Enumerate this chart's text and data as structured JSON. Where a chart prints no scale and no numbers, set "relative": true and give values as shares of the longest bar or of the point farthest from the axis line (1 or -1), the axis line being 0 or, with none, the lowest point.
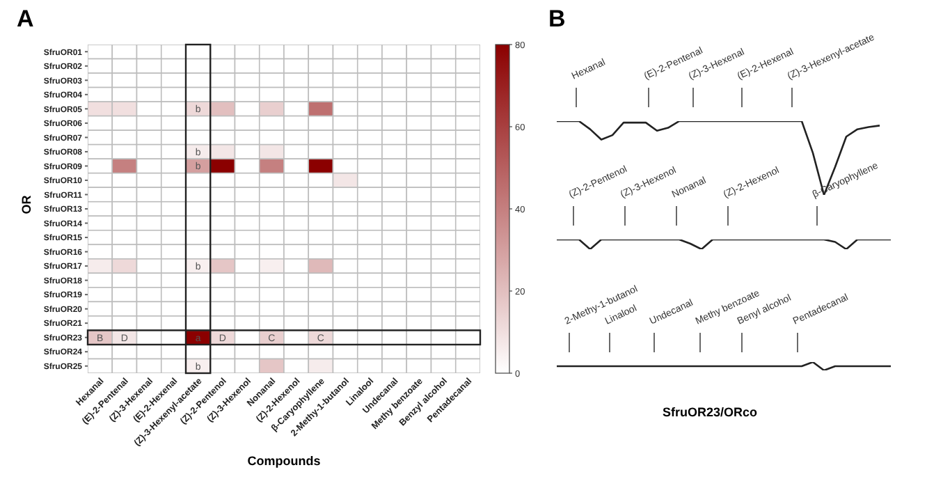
{
  "chart_data": [
    {
      "type": "heatmap",
      "title": "A",
      "xlabel": "Compounds",
      "ylabel": "OR",
      "clim": [
        0,
        80
      ],
      "cticks": [
        0,
        20,
        40,
        60,
        80
      ],
      "categories": [
        "Hexanal",
        "(E)-2-Pentenal",
        "(Z)-3-Hexenal",
        "(E)-2-Hexenal",
        "(Z)-3-Hexenyl-acetate",
        "(Z)-2-Pentenol",
        "(Z)-3-Hexenol",
        "Nonanal",
        "(Z)-2-Hexenol",
        "β-Caryophyllene",
        "2-Methy-1-butanol",
        "Linalool",
        "Undecanal",
        "Methy benzoate",
        "Benzyl alcohol",
        "Pentadecanal"
      ],
      "y_categories": [
        "SfruOR01",
        "SfruOR02",
        "SfruOR03",
        "SfruOR04",
        "SfruOR05",
        "SfruOR06",
        "SfruOR07",
        "SfruOR08",
        "SfruOR09",
        "SfruOR10",
        "SfruOR11",
        "SfruOR13",
        "SfruOR14",
        "SfruOR15",
        "SfruOR16",
        "SfruOR17",
        "SfruOR18",
        "SfruOR19",
        "SfruOR20",
        "SfruOR21",
        "SfruOR23",
        "SfruOR24",
        "SfruOR25"
      ],
      "cells": [
        [
          0,
          0,
          0,
          0,
          0,
          0,
          0,
          0,
          0,
          0,
          0,
          0,
          0,
          0,
          0,
          0
        ],
        [
          0,
          0,
          0,
          0,
          0,
          0,
          0,
          0,
          0,
          0,
          0,
          0,
          0,
          0,
          0,
          0
        ],
        [
          0,
          0,
          0,
          0,
          0,
          0,
          0,
          0,
          0,
          0,
          0,
          0,
          0,
          0,
          0,
          0
        ],
        [
          0,
          0,
          0,
          0,
          0,
          0,
          0,
          0,
          0,
          0,
          0,
          0,
          0,
          0,
          0,
          0
        ],
        [
          10,
          10,
          0,
          0,
          12,
          20,
          0,
          15,
          0,
          45,
          0,
          0,
          0,
          0,
          0,
          0
        ],
        [
          0,
          0,
          0,
          0,
          0,
          0,
          0,
          0,
          0,
          0,
          0,
          0,
          0,
          0,
          0,
          0
        ],
        [
          0,
          0,
          0,
          0,
          0,
          0,
          0,
          0,
          0,
          0,
          0,
          0,
          0,
          0,
          0,
          0
        ],
        [
          0,
          0,
          0,
          0,
          6,
          8,
          0,
          8,
          0,
          0,
          0,
          0,
          0,
          0,
          0,
          0
        ],
        [
          0,
          40,
          0,
          0,
          30,
          80,
          0,
          40,
          0,
          80,
          0,
          0,
          0,
          0,
          0,
          0
        ],
        [
          0,
          0,
          0,
          0,
          0,
          0,
          0,
          0,
          0,
          0,
          8,
          0,
          0,
          0,
          0,
          0
        ],
        [
          0,
          0,
          0,
          0,
          0,
          0,
          0,
          0,
          0,
          0,
          0,
          0,
          0,
          0,
          0,
          0
        ],
        [
          0,
          0,
          0,
          0,
          0,
          0,
          0,
          0,
          0,
          0,
          0,
          0,
          0,
          0,
          0,
          0
        ],
        [
          0,
          0,
          0,
          0,
          0,
          0,
          0,
          0,
          0,
          0,
          0,
          0,
          0,
          0,
          0,
          0
        ],
        [
          0,
          0,
          0,
          0,
          0,
          0,
          0,
          0,
          0,
          0,
          0,
          0,
          0,
          0,
          0,
          0
        ],
        [
          0,
          0,
          0,
          0,
          0,
          0,
          0,
          0,
          0,
          0,
          0,
          0,
          0,
          0,
          0,
          0
        ],
        [
          6,
          12,
          0,
          0,
          5,
          18,
          0,
          5,
          0,
          22,
          0,
          0,
          0,
          0,
          0,
          0
        ],
        [
          0,
          0,
          0,
          0,
          0,
          0,
          0,
          0,
          0,
          0,
          0,
          0,
          0,
          0,
          0,
          0
        ],
        [
          0,
          0,
          0,
          0,
          0,
          0,
          0,
          0,
          0,
          0,
          0,
          0,
          0,
          0,
          0,
          0
        ],
        [
          0,
          0,
          0,
          0,
          0,
          0,
          0,
          0,
          0,
          0,
          0,
          0,
          0,
          0,
          0,
          0
        ],
        [
          0,
          0,
          0,
          0,
          0,
          0,
          0,
          0,
          0,
          0,
          0,
          0,
          0,
          0,
          0,
          0
        ],
        [
          18,
          8,
          0,
          0,
          80,
          12,
          0,
          15,
          0,
          12,
          0,
          0,
          0,
          0,
          0,
          0
        ],
        [
          0,
          0,
          0,
          0,
          0,
          0,
          0,
          0,
          0,
          0,
          0,
          0,
          0,
          0,
          0,
          0
        ],
        [
          0,
          0,
          0,
          0,
          5,
          0,
          0,
          18,
          0,
          6,
          0,
          0,
          0,
          0,
          0,
          0
        ]
      ],
      "cell_labels": [
        [
          null,
          null,
          null,
          null,
          null,
          null,
          null,
          null,
          null,
          null,
          null,
          null,
          null,
          null,
          null,
          null
        ],
        [
          null,
          null,
          null,
          null,
          null,
          null,
          null,
          null,
          null,
          null,
          null,
          null,
          null,
          null,
          null,
          null
        ],
        [
          null,
          null,
          null,
          null,
          null,
          null,
          null,
          null,
          null,
          null,
          null,
          null,
          null,
          null,
          null,
          null
        ],
        [
          null,
          null,
          null,
          null,
          null,
          null,
          null,
          null,
          null,
          null,
          null,
          null,
          null,
          null,
          null,
          null
        ],
        [
          null,
          null,
          null,
          null,
          "b",
          null,
          null,
          null,
          null,
          null,
          null,
          null,
          null,
          null,
          null,
          null
        ],
        [
          null,
          null,
          null,
          null,
          null,
          null,
          null,
          null,
          null,
          null,
          null,
          null,
          null,
          null,
          null,
          null
        ],
        [
          null,
          null,
          null,
          null,
          null,
          null,
          null,
          null,
          null,
          null,
          null,
          null,
          null,
          null,
          null,
          null
        ],
        [
          null,
          null,
          null,
          null,
          "b",
          null,
          null,
          null,
          null,
          null,
          null,
          null,
          null,
          null,
          null,
          null
        ],
        [
          null,
          null,
          null,
          null,
          "b",
          null,
          null,
          null,
          null,
          null,
          null,
          null,
          null,
          null,
          null,
          null
        ],
        [
          null,
          null,
          null,
          null,
          null,
          null,
          null,
          null,
          null,
          null,
          null,
          null,
          null,
          null,
          null,
          null
        ],
        [
          null,
          null,
          null,
          null,
          null,
          null,
          null,
          null,
          null,
          null,
          null,
          null,
          null,
          null,
          null,
          null
        ],
        [
          null,
          null,
          null,
          null,
          null,
          null,
          null,
          null,
          null,
          null,
          null,
          null,
          null,
          null,
          null,
          null
        ],
        [
          null,
          null,
          null,
          null,
          null,
          null,
          null,
          null,
          null,
          null,
          null,
          null,
          null,
          null,
          null,
          null
        ],
        [
          null,
          null,
          null,
          null,
          null,
          null,
          null,
          null,
          null,
          null,
          null,
          null,
          null,
          null,
          null,
          null
        ],
        [
          null,
          null,
          null,
          null,
          null,
          null,
          null,
          null,
          null,
          null,
          null,
          null,
          null,
          null,
          null,
          null
        ],
        [
          null,
          null,
          null,
          null,
          "b",
          null,
          null,
          null,
          null,
          null,
          null,
          null,
          null,
          null,
          null,
          null
        ],
        [
          null,
          null,
          null,
          null,
          null,
          null,
          null,
          null,
          null,
          null,
          null,
          null,
          null,
          null,
          null,
          null
        ],
        [
          null,
          null,
          null,
          null,
          null,
          null,
          null,
          null,
          null,
          null,
          null,
          null,
          null,
          null,
          null,
          null
        ],
        [
          null,
          null,
          null,
          null,
          null,
          null,
          null,
          null,
          null,
          null,
          null,
          null,
          null,
          null,
          null,
          null
        ],
        [
          null,
          null,
          null,
          null,
          null,
          null,
          null,
          null,
          null,
          null,
          null,
          null,
          null,
          null,
          null,
          null
        ],
        [
          "B",
          "D",
          null,
          null,
          "a",
          "D",
          null,
          "C",
          null,
          "C",
          null,
          null,
          null,
          null,
          null,
          null
        ],
        [
          null,
          null,
          null,
          null,
          null,
          null,
          null,
          null,
          null,
          null,
          null,
          null,
          null,
          null,
          null,
          null
        ],
        [
          null,
          null,
          null,
          null,
          "b",
          null,
          null,
          null,
          null,
          null,
          null,
          null,
          null,
          null,
          null,
          null
        ]
      ]
    },
    {
      "type": "line",
      "title": "B",
      "relative": true,
      "categories": [
        null,
        null,
        null,
        null,
        null,
        null,
        null,
        null,
        null,
        null,
        null,
        null,
        null,
        null,
        null,
        null,
        null,
        null,
        null,
        null,
        null,
        null,
        null,
        null,
        null,
        null,
        null,
        null,
        null,
        null,
        null
      ],
      "series": [
        {
          "color": "#222222",
          "values": [
            1,
            1,
            1,
            0.89,
            0.75,
            0.81,
            0.98,
            0.98,
            0.98,
            0.87,
            0.91,
            1,
            1,
            1,
            1,
            1,
            1,
            1,
            1,
            1,
            1,
            1,
            1,
            0.57,
            0,
            0.38,
            0.79,
            0.89,
            0.92,
            0.94,
            null
          ]
        }
      ],
      "annotations": [
        "Hexanal",
        "(E)-2-Pentenal",
        "(Z)-3-Hexenal",
        "(E)-2-Hexenal",
        "(Z)-3-Hexenyl-acetate"
      ]
    },
    {
      "type": "line",
      "relative": true,
      "categories": [
        null,
        null,
        null,
        null,
        null,
        null,
        null,
        null,
        null,
        null,
        null,
        null,
        null,
        null,
        null,
        null,
        null,
        null,
        null,
        null,
        null,
        null,
        null,
        null,
        null,
        null,
        null,
        null,
        null,
        null,
        null
      ],
      "series": [
        {
          "color": "#222222",
          "values": [
            1,
            1,
            1,
            0,
            1,
            1,
            1,
            1,
            1,
            1,
            1,
            1,
            0.57,
            0,
            1,
            1,
            1,
            1,
            1,
            1,
            1,
            1,
            1,
            1,
            1,
            0.75,
            0,
            1,
            1,
            1,
            1
          ]
        }
      ],
      "annotations": [
        "(Z)-2-Pentenol",
        "(Z)-3-Hexenol",
        "Nonanal",
        "(Z)-2-Hexenol",
        "β-Caryophyllene"
      ]
    },
    {
      "type": "line",
      "xlabel": "SfruOR23/ORco",
      "relative": true,
      "categories": [
        null,
        null,
        null,
        null,
        null,
        null,
        null,
        null,
        null,
        null,
        null,
        null,
        null,
        null,
        null,
        null,
        null,
        null,
        null,
        null,
        null,
        null,
        null,
        null,
        null,
        null,
        null,
        null,
        null,
        null,
        null
      ],
      "series": [
        {
          "color": "#222222",
          "values": [
            0.5,
            0.5,
            0.5,
            0.5,
            0.5,
            0.5,
            0.5,
            0.5,
            0.5,
            0.5,
            0.5,
            0.5,
            0.5,
            0.5,
            0.5,
            0.5,
            0.5,
            0.5,
            0.5,
            0.5,
            0.5,
            0.5,
            0.5,
            1,
            0,
            0.5,
            0.5,
            0.5,
            0.5,
            0.5,
            0.5
          ]
        }
      ],
      "annotations": [
        "2-Methy-1-butanol",
        "Linalool",
        "Undecanal",
        "Methy benzoate",
        "Benyl alcohol",
        "Pentadecanal"
      ]
    }
  ]
}
